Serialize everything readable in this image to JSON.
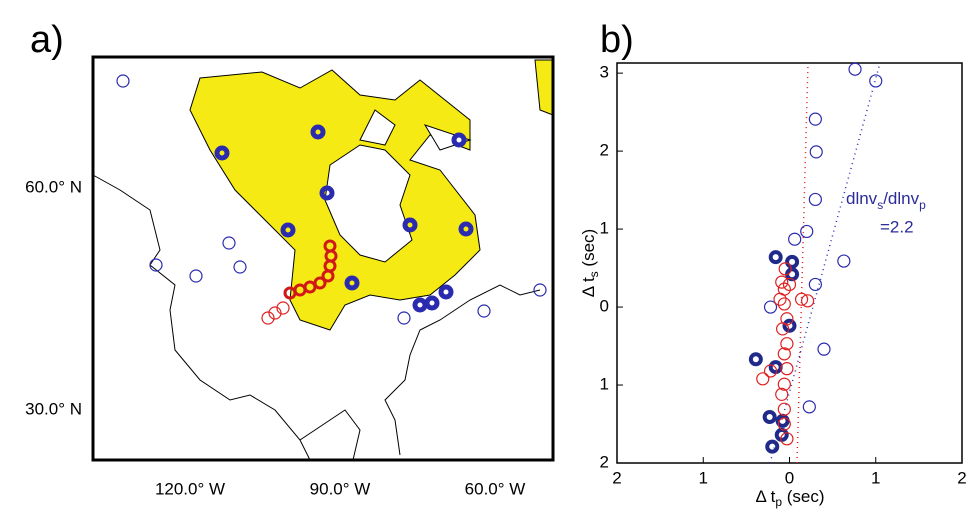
{
  "panel_a": {
    "label": "a)",
    "x_labels": [
      "120.0° W",
      "90.0° W",
      "60.0° W"
    ],
    "y_labels": [
      "60.0° N",
      "30.0° N"
    ]
  },
  "chart_data": {
    "type": "scatter",
    "label": "b)",
    "xlabel": {
      "main": "Δ t",
      "sub": "p",
      "tail": " (sec)"
    },
    "ylabel": {
      "main": "Δ t",
      "sub": "s",
      "tail": " (sec)"
    },
    "annotation": {
      "a": "dlnv",
      "b": "s",
      "c": "/dlnv",
      "d": "p",
      "e": "=2.2"
    },
    "xlim": [
      -2,
      2
    ],
    "ylim": [
      -2,
      3.13
    ],
    "xticks": [
      {
        "value": -2,
        "label": "2"
      },
      {
        "value": -1,
        "label": "1"
      },
      0,
      1,
      2
    ],
    "yticks": [
      {
        "value": -2,
        "label": "2"
      },
      {
        "value": -1,
        "label": "1"
      },
      0,
      1,
      2,
      3
    ],
    "series": [
      {
        "color": "#2b2bb0",
        "marker": "open",
        "x": [
          0.76,
          1.0,
          0.3,
          0.31,
          0.3,
          0.2,
          0.06,
          0.63,
          0.3,
          -0.22,
          0.4,
          0.23
        ],
        "values": [
          3.05,
          2.9,
          2.41,
          1.99,
          1.38,
          0.97,
          0.87,
          0.59,
          0.29,
          0,
          -0.54,
          -1.28
        ]
      },
      {
        "color": "#1f2a8a",
        "marker": "thick",
        "x": [
          -0.16,
          0.03,
          0.03,
          0,
          -0.39,
          -0.16,
          -0.23,
          -0.08,
          -0.09,
          -0.2
        ],
        "values": [
          0.64,
          0.58,
          0.42,
          -0.24,
          -0.67,
          -0.77,
          -1.41,
          -1.46,
          -1.64,
          -1.79
        ]
      },
      {
        "color": "#e02020",
        "marker": "open",
        "x": [
          -0.05,
          0,
          -0.06,
          -0.06,
          0.14,
          0.21,
          -0.03,
          -0.08,
          -0.03,
          -0.06,
          -0.03,
          -0.22,
          -0.31,
          -0.06,
          -0.09,
          -0.06,
          -0.06,
          -0.03,
          -0.09,
          -0.11
        ],
        "values": [
          0.49,
          0.29,
          0.23,
          0.04,
          0.1,
          0.08,
          -0.15,
          -0.28,
          -0.47,
          -0.6,
          -0.79,
          -0.82,
          -0.92,
          -0.99,
          -1.12,
          -1.31,
          -1.5,
          -1.69,
          0.32,
          0.1
        ]
      }
    ]
  }
}
